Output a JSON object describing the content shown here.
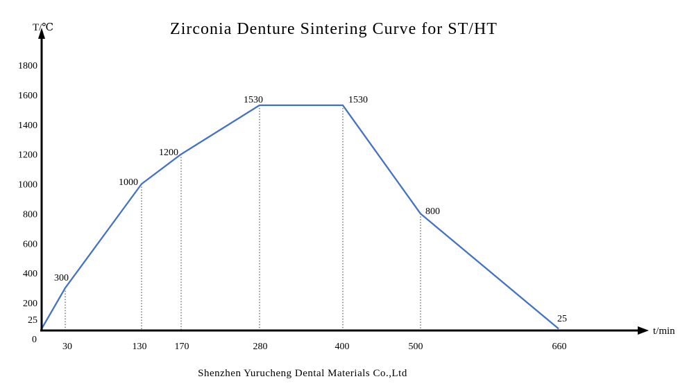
{
  "title": "Zirconia Denture Sintering Curve for ST/HT",
  "footer": "Shenzhen Yurucheng Dental Materials Co.,Ltd",
  "axes": {
    "y_label": "T/℃",
    "x_label": "t/min",
    "origin_label": "0"
  },
  "colors": {
    "curve": "#4472C4",
    "axis": "#000000",
    "guide": "#333333",
    "text": "#000000"
  },
  "chart_data": {
    "type": "line",
    "x": [
      0,
      30,
      130,
      170,
      280,
      400,
      500,
      660
    ],
    "y": [
      25,
      300,
      1000,
      1200,
      1530,
      1530,
      800,
      25
    ],
    "point_labels": [
      "",
      "300",
      "1000",
      "1200",
      "1530",
      "1530",
      "800",
      "25"
    ],
    "x_ticks": [
      "30",
      "130",
      "170",
      "280",
      "400",
      "500",
      "660"
    ],
    "y_ticks": [
      "1800",
      "1600",
      "1400",
      "1200",
      "1000",
      "800",
      "600",
      "400",
      "200",
      "25"
    ],
    "title": "Zirconia Denture Sintering Curve for ST/HT",
    "xlabel": "t/min",
    "ylabel": "T/℃",
    "xlim": [
      0,
      700
    ],
    "ylim": [
      0,
      1900
    ],
    "grid": "dotted vertical guide lines dropped from each segment breakpoint to the time axis",
    "legend_position": "none",
    "units": {
      "x": "min",
      "y": "°C"
    },
    "description": "Heating from 25°C to 1530°C with ramps (25→300 in 30min, →1000 at 130min, →1200 at 170min, →1530 at 280min), hold at 1530°C until 400min, then cooling to 800°C at 500min and 25°C at 660min"
  }
}
